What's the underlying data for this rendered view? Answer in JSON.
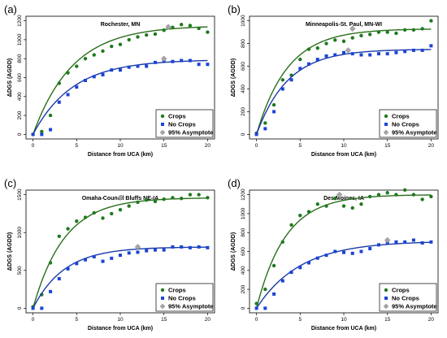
{
  "colors": {
    "crops": "#1f7a1f",
    "crops_curve": "#2b6e1c",
    "no_crops": "#1a44d6",
    "no_crops_curve": "#1a3aa8",
    "asymptote": "#a6a6a6"
  },
  "chart_data": [
    {
      "type": "scatter",
      "panel_label": "(a)",
      "title": "Rochester, MN",
      "xlabel": "Distance from UCA (km)",
      "ylabel": "ΔDGS (AGDD)",
      "xlim": [
        0,
        20
      ],
      "ylim": [
        0,
        1200
      ],
      "xticks": [
        0,
        5,
        10,
        15,
        20
      ],
      "yticks": [
        0,
        200,
        400,
        600,
        800,
        1000,
        1200
      ],
      "legend": {
        "position": "bottom-right",
        "entries": [
          "Crops",
          "No Crops",
          "95% Asymptote"
        ]
      },
      "series": [
        {
          "name": "Crops",
          "marker": "circle",
          "x": [
            0,
            1,
            2,
            3,
            4,
            5,
            6,
            7,
            8,
            9,
            10,
            11,
            12,
            13,
            14,
            15,
            16,
            17,
            18,
            19,
            20
          ],
          "y": [
            0,
            30,
            200,
            540,
            650,
            720,
            800,
            840,
            880,
            930,
            950,
            1000,
            1030,
            1050,
            1060,
            1100,
            1130,
            1160,
            1150,
            1120,
            1080
          ],
          "fit": {
            "a": 1150,
            "k": 0.22
          }
        },
        {
          "name": "No Crops",
          "marker": "square",
          "x": [
            0,
            1,
            2,
            3,
            4,
            5,
            6,
            7,
            8,
            9,
            10,
            11,
            12,
            13,
            14,
            15,
            16,
            17,
            18,
            19,
            20
          ],
          "y": [
            0,
            0,
            50,
            340,
            420,
            500,
            570,
            610,
            630,
            680,
            680,
            710,
            720,
            720,
            760,
            780,
            770,
            780,
            780,
            740,
            740
          ],
          "fit": {
            "a": 790,
            "k": 0.22
          }
        }
      ],
      "asymptote_points": [
        {
          "series": "Crops",
          "x": 15.5,
          "y": 1135
        },
        {
          "series": "No Crops",
          "x": 15.0,
          "y": 800
        }
      ]
    },
    {
      "type": "scatter",
      "panel_label": "(b)",
      "title": "Minneapolis-St. Paul, MN-WI",
      "xlabel": "Distance from UCA (km)",
      "ylabel": "ΔDGS (AGDD)",
      "xlim": [
        0,
        20
      ],
      "ylim": [
        0,
        1000
      ],
      "xticks": [
        0,
        5,
        10,
        15,
        20
      ],
      "yticks": [
        0,
        200,
        400,
        600,
        800,
        1000
      ],
      "legend": {
        "position": "bottom-right",
        "entries": [
          "Crops",
          "No Crops",
          "95% Asymptote"
        ]
      },
      "series": [
        {
          "name": "Crops",
          "marker": "circle",
          "x": [
            0,
            1,
            2,
            3,
            4,
            5,
            6,
            7,
            8,
            9,
            10,
            11,
            12,
            13,
            14,
            15,
            16,
            17,
            18,
            19,
            20
          ],
          "y": [
            10,
            100,
            260,
            480,
            520,
            660,
            750,
            760,
            800,
            830,
            820,
            850,
            870,
            880,
            900,
            900,
            890,
            920,
            920,
            930,
            1000
          ],
          "fit": {
            "a": 930,
            "k": 0.28
          }
        },
        {
          "name": "No Crops",
          "marker": "square",
          "x": [
            0,
            1,
            2,
            3,
            4,
            5,
            6,
            7,
            8,
            9,
            10,
            11,
            12,
            13,
            14,
            15,
            16,
            17,
            18,
            19,
            20
          ],
          "y": [
            0,
            50,
            200,
            400,
            480,
            580,
            620,
            660,
            690,
            700,
            720,
            710,
            700,
            700,
            710,
            710,
            720,
            730,
            740,
            740,
            780
          ],
          "fit": {
            "a": 750,
            "k": 0.28
          }
        }
      ],
      "asymptote_points": [
        {
          "series": "Crops",
          "x": 11.0,
          "y": 930
        },
        {
          "series": "No Crops",
          "x": 10.5,
          "y": 740
        }
      ]
    },
    {
      "type": "scatter",
      "panel_label": "(c)",
      "title": "Omaha-Council Bluffs NE-IA",
      "xlabel": "Distance from UCA (km)",
      "ylabel": "ΔDGS (AGDD)",
      "xlim": [
        0,
        20
      ],
      "ylim": [
        0,
        1500
      ],
      "xticks": [
        0,
        5,
        10,
        15,
        20
      ],
      "yticks": [
        0,
        500,
        1000,
        1500
      ],
      "legend": {
        "position": "bottom-right",
        "entries": [
          "Crops",
          "No Crops",
          "95% Asymptote"
        ]
      },
      "series": [
        {
          "name": "Crops",
          "marker": "circle",
          "x": [
            0,
            1,
            2,
            3,
            4,
            5,
            6,
            7,
            8,
            9,
            10,
            11,
            12,
            13,
            14,
            15,
            16,
            17,
            18,
            19,
            20
          ],
          "y": [
            20,
            180,
            600,
            950,
            1050,
            1150,
            1200,
            1260,
            1190,
            1250,
            1300,
            1350,
            1400,
            1430,
            1410,
            1440,
            1460,
            1450,
            1500,
            1500,
            1460
          ],
          "fit": {
            "a": 1460,
            "k": 0.28
          }
        },
        {
          "name": "No Crops",
          "marker": "square",
          "x": [
            0,
            1,
            2,
            3,
            4,
            5,
            6,
            7,
            8,
            9,
            10,
            11,
            12,
            13,
            14,
            15,
            16,
            17,
            18,
            19,
            20
          ],
          "y": [
            0,
            0,
            220,
            390,
            520,
            590,
            640,
            680,
            620,
            660,
            700,
            730,
            740,
            760,
            770,
            770,
            810,
            810,
            800,
            810,
            800
          ],
          "fit": {
            "a": 810,
            "k": 0.28
          }
        }
      ],
      "asymptote_points": [
        {
          "series": "Crops",
          "x": 10.0,
          "y": 1460
        },
        {
          "series": "No Crops",
          "x": 12.0,
          "y": 810
        }
      ]
    },
    {
      "type": "scatter",
      "panel_label": "(d)",
      "title": "Des Moines, IA",
      "xlabel": "Distance from UCA (km)",
      "ylabel": "ΔDGS (AGDD)",
      "xlim": [
        0,
        20
      ],
      "ylim": [
        0,
        1200
      ],
      "xticks": [
        0,
        5,
        10,
        15,
        20
      ],
      "yticks": [
        0,
        200,
        400,
        600,
        800,
        1000,
        1200
      ],
      "legend": {
        "position": "bottom-right",
        "entries": [
          "Crops",
          "No Crops",
          "95% Asymptote"
        ]
      },
      "series": [
        {
          "name": "Crops",
          "marker": "circle",
          "x": [
            0,
            1,
            2,
            3,
            4,
            5,
            6,
            7,
            8,
            9,
            10,
            11,
            12,
            13,
            14,
            15,
            16,
            17,
            18,
            19,
            20
          ],
          "y": [
            50,
            200,
            450,
            700,
            880,
            980,
            1020,
            1100,
            1080,
            1160,
            1080,
            1060,
            1100,
            1180,
            1200,
            1220,
            1200,
            1250,
            1200,
            1150,
            1180
          ],
          "fit": {
            "a": 1200,
            "k": 0.3
          }
        },
        {
          "name": "No Crops",
          "marker": "square",
          "x": [
            0,
            1,
            2,
            3,
            4,
            5,
            6,
            7,
            8,
            9,
            10,
            11,
            12,
            13,
            14,
            15,
            16,
            17,
            18,
            19,
            20
          ],
          "y": [
            0,
            0,
            150,
            290,
            380,
            430,
            480,
            530,
            560,
            600,
            590,
            580,
            600,
            630,
            670,
            690,
            700,
            700,
            720,
            690,
            700
          ],
          "fit": {
            "a": 710,
            "k": 0.2
          }
        }
      ],
      "asymptote_points": [
        {
          "series": "Crops",
          "x": 9.5,
          "y": 1200
        },
        {
          "series": "No Crops",
          "x": 15.0,
          "y": 720
        }
      ]
    }
  ]
}
